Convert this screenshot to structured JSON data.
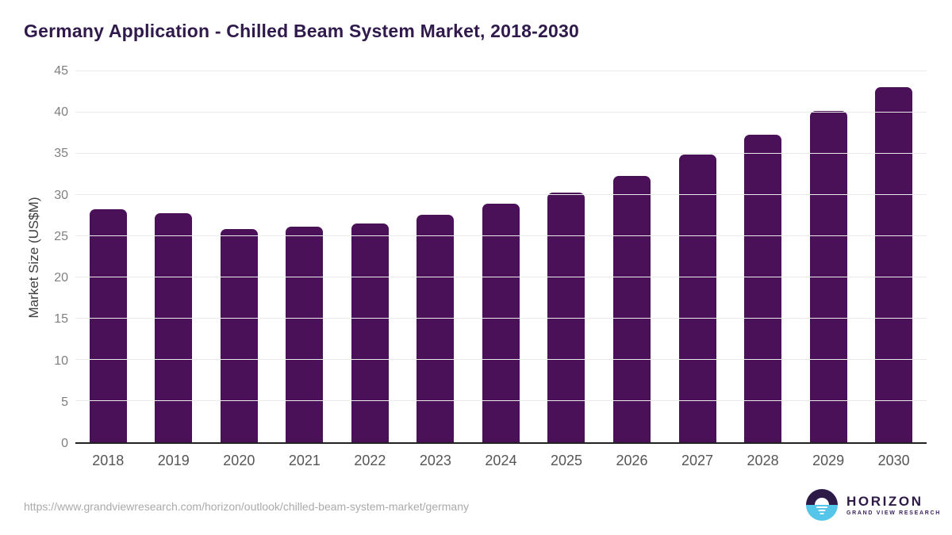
{
  "title": "Germany Application - Chilled Beam System Market, 2018-2030",
  "source_url": "https://www.grandviewresearch.com/horizon/outlook/chilled-beam-system-market/germany",
  "logo": {
    "name": "HORIZON",
    "subtitle": "GRAND VIEW RESEARCH"
  },
  "colors": {
    "bar": "#4a1158",
    "title": "#2f1a4b",
    "gridline": "#ebebeb",
    "axis_baseline": "#222222",
    "ytick_label": "#7f7f7f",
    "xtick_label": "#565659",
    "source_url": "#aaaaaa",
    "logo_purple": "#2e1a47",
    "logo_blue": "#56c5ea"
  },
  "chart_data": {
    "type": "bar",
    "title": "Germany Application - Chilled Beam System Market, 2018-2030",
    "categories": [
      "2018",
      "2019",
      "2020",
      "2021",
      "2022",
      "2023",
      "2024",
      "2025",
      "2026",
      "2027",
      "2028",
      "2029",
      "2030"
    ],
    "values": [
      28.3,
      27.8,
      25.9,
      26.2,
      26.5,
      27.6,
      28.9,
      30.3,
      32.3,
      34.9,
      37.3,
      40.2,
      43.1
    ],
    "xlabel": "",
    "ylabel": "Market Size (US$M)",
    "ylim": [
      0,
      45
    ],
    "yticks": [
      0,
      5,
      10,
      15,
      20,
      25,
      30,
      35,
      40,
      45
    ],
    "grid": "horizontal",
    "legend": "none"
  }
}
